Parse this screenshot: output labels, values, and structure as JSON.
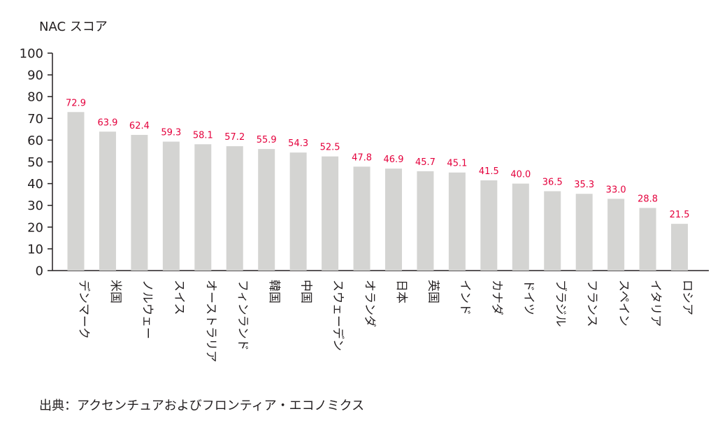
{
  "chart_data": {
    "type": "bar",
    "ylabel": "NAC スコア",
    "xlabel": "",
    "ylim": [
      0,
      100
    ],
    "yticks": [
      0,
      10,
      20,
      30,
      40,
      50,
      60,
      70,
      80,
      90,
      100
    ],
    "grid": false,
    "categories": [
      "デンマーク",
      "米国",
      "ノルウェー",
      "スイス",
      "オーストラリア",
      "フィンランド",
      "韓国",
      "中国",
      "スウェーデン",
      "オランダ",
      "日本",
      "英国",
      "インド",
      "カナダ",
      "ドイツ",
      "ブラジル",
      "フランス",
      "スペイン",
      "イタリア",
      "ロシア"
    ],
    "values": [
      72.9,
      63.9,
      62.4,
      59.3,
      58.1,
      57.2,
      55.9,
      54.3,
      52.5,
      47.8,
      46.9,
      45.7,
      45.1,
      41.5,
      40.0,
      36.5,
      35.3,
      33.0,
      28.8,
      21.5
    ],
    "value_labels": [
      "72.9",
      "63.9",
      "62.4",
      "59.3",
      "58.1",
      "57.2",
      "55.9",
      "54.3",
      "52.5",
      "47.8",
      "46.9",
      "45.7",
      "45.1",
      "41.5",
      "40.0",
      "36.5",
      "35.3",
      "33.0",
      "28.8",
      "21.5"
    ],
    "colors": {
      "bar": "#d4d4d2",
      "value_label": "#e4003c",
      "axis": "#231f20",
      "text": "#231f20"
    }
  },
  "source": "出典：アクセンチュアおよびフロンティア・エコノミクス"
}
